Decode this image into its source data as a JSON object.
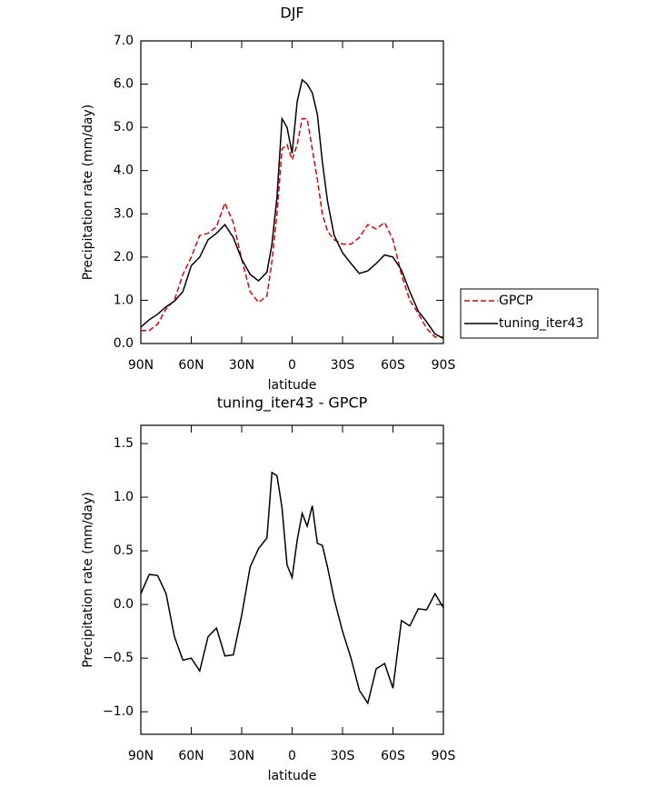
{
  "chart_data": [
    {
      "type": "line",
      "title": "DJF",
      "xlabel": "latitude",
      "ylabel": "Precipitation rate (mm/day)",
      "x": [
        90,
        85,
        80,
        75,
        70,
        65,
        60,
        55,
        50,
        45,
        40,
        35,
        30,
        25,
        20,
        15,
        12,
        9,
        6,
        3,
        0,
        -3,
        -6,
        -9,
        -12,
        -15,
        -18,
        -21,
        -25,
        -30,
        -35,
        -40,
        -45,
        -50,
        -55,
        -60,
        -65,
        -70,
        -75,
        -80,
        -85,
        -90
      ],
      "series": [
        {
          "name": "GPCP",
          "color": "#e00000",
          "dashed": true,
          "values": [
            0.3,
            0.3,
            0.45,
            0.8,
            1.0,
            1.6,
            2.0,
            2.5,
            2.55,
            2.7,
            3.25,
            2.8,
            1.95,
            1.2,
            0.95,
            1.1,
            1.9,
            3.0,
            4.5,
            4.6,
            4.25,
            4.6,
            5.2,
            5.2,
            4.5,
            3.8,
            3.0,
            2.6,
            2.4,
            2.3,
            2.3,
            2.45,
            2.75,
            2.65,
            2.8,
            2.4,
            1.6,
            1.0,
            0.7,
            0.35,
            0.15,
            0.15
          ]
        },
        {
          "name": "tuning_iter43",
          "color": "#000000",
          "dashed": false,
          "values": [
            0.38,
            0.55,
            0.68,
            0.85,
            0.98,
            1.2,
            1.8,
            2.0,
            2.4,
            2.55,
            2.75,
            2.45,
            1.95,
            1.6,
            1.45,
            1.65,
            2.3,
            3.4,
            5.2,
            5.0,
            4.4,
            5.6,
            6.1,
            6.0,
            5.8,
            5.3,
            4.2,
            3.3,
            2.5,
            2.1,
            1.85,
            1.62,
            1.68,
            1.85,
            2.05,
            2.0,
            1.7,
            1.2,
            0.75,
            0.5,
            0.22,
            0.12
          ]
        }
      ],
      "xlim": [
        90,
        -90
      ],
      "xticks": [
        {
          "value": 90,
          "label": "90N"
        },
        {
          "value": 60,
          "label": "60N"
        },
        {
          "value": 30,
          "label": "30N"
        },
        0,
        {
          "value": -30,
          "label": "30S"
        },
        {
          "value": -60,
          "label": "60S"
        },
        {
          "value": -90,
          "label": "90S"
        }
      ],
      "ylim": [
        0,
        7
      ],
      "yticks": [
        {
          "value": 0,
          "label": "0.0"
        },
        {
          "value": 1,
          "label": "1.0"
        },
        {
          "value": 2,
          "label": "2.0"
        },
        {
          "value": 3,
          "label": "3.0"
        },
        {
          "value": 4,
          "label": "4.0"
        },
        {
          "value": 5,
          "label": "5.0"
        },
        {
          "value": 6,
          "label": "6.0"
        },
        {
          "value": 7,
          "label": "7.0"
        }
      ],
      "legend": "right"
    },
    {
      "type": "line",
      "title": "tuning_iter43 - GPCP",
      "xlabel": "latitude",
      "ylabel": "Precipitation rate (mm/day)",
      "x": [
        90,
        85,
        80,
        75,
        70,
        65,
        60,
        55,
        50,
        45,
        40,
        35,
        30,
        25,
        20,
        15,
        12,
        9,
        6,
        3,
        0,
        -3,
        -6,
        -9,
        -12,
        -15,
        -18,
        -21,
        -25,
        -30,
        -35,
        -40,
        -45,
        -50,
        -55,
        -60,
        -65,
        -70,
        -75,
        -80,
        -85,
        -90
      ],
      "values": [
        0.1,
        0.28,
        0.27,
        0.1,
        -0.3,
        -0.52,
        -0.5,
        -0.62,
        -0.3,
        -0.22,
        -0.48,
        -0.47,
        -0.1,
        0.35,
        0.52,
        0.62,
        1.23,
        1.2,
        0.9,
        0.37,
        0.25,
        0.6,
        0.85,
        0.73,
        0.92,
        0.57,
        0.55,
        0.35,
        0.05,
        -0.25,
        -0.5,
        -0.8,
        -0.92,
        -0.6,
        -0.55,
        -0.78,
        -0.15,
        -0.2,
        -0.04,
        -0.05,
        0.1,
        -0.03
      ],
      "color": "#000000",
      "xlim": [
        90,
        -90
      ],
      "xticks": [
        {
          "value": 90,
          "label": "90N"
        },
        {
          "value": 60,
          "label": "60N"
        },
        {
          "value": 30,
          "label": "30N"
        },
        0,
        {
          "value": -30,
          "label": "30S"
        },
        {
          "value": -60,
          "label": "60S"
        },
        {
          "value": -90,
          "label": "90S"
        }
      ],
      "ylim": [
        -1.21,
        1.67
      ],
      "yticks": [
        {
          "value": -1,
          "label": "−1.0"
        },
        {
          "value": -0.5,
          "label": "−0.5"
        },
        {
          "value": 0,
          "label": "0.0"
        },
        {
          "value": 0.5,
          "label": "0.5"
        },
        {
          "value": 1,
          "label": "1.0"
        },
        {
          "value": 1.5,
          "label": "1.5"
        }
      ]
    }
  ]
}
